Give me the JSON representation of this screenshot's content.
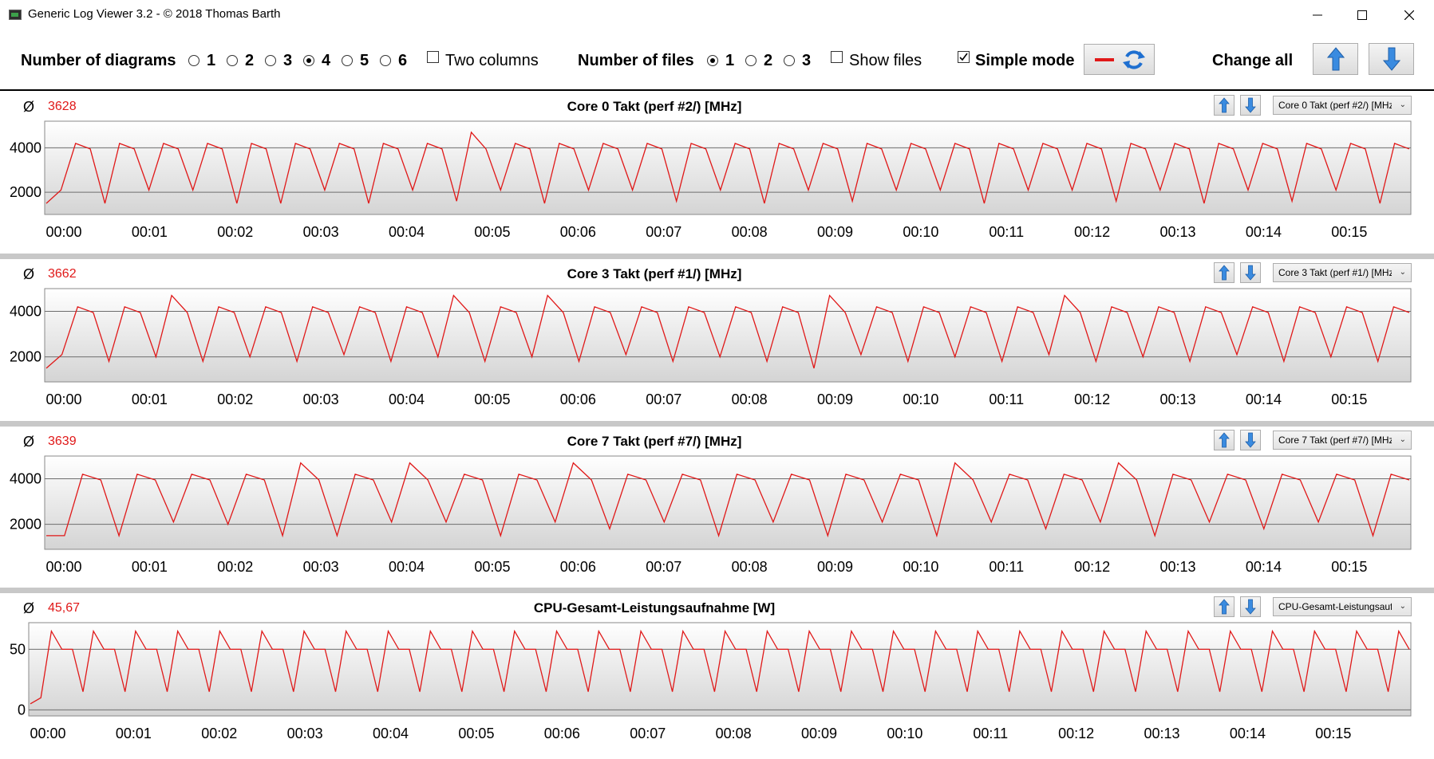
{
  "window": {
    "title": "Generic Log Viewer 3.2 - © 2018 Thomas Barth",
    "controls": [
      "minimize",
      "maximize",
      "close"
    ]
  },
  "toolbar": {
    "diagrams_label": "Number of diagrams",
    "diagram_options": [
      "1",
      "2",
      "3",
      "4",
      "5",
      "6"
    ],
    "diagrams_selected": "4",
    "two_columns_label": "Two columns",
    "two_columns_checked": false,
    "files_label": "Number of files",
    "file_options": [
      "1",
      "2",
      "3"
    ],
    "files_selected": "1",
    "show_files_label": "Show files",
    "show_files_checked": false,
    "simple_mode_label": "Simple mode",
    "simple_mode_checked": true,
    "change_all_label": "Change all",
    "line_color": "#e01818"
  },
  "panels": [
    {
      "avg_symbol": "Ø",
      "avg_value": "3628",
      "title": "Core 0 Takt (perf #2/) [MHz]",
      "selector": "Core 0 Takt (perf #2/) [MHz]"
    },
    {
      "avg_symbol": "Ø",
      "avg_value": "3662",
      "title": "Core 3 Takt (perf #1/) [MHz]",
      "selector": "Core 3 Takt (perf #1/) [MHz]"
    },
    {
      "avg_symbol": "Ø",
      "avg_value": "3639",
      "title": "Core 7 Takt (perf #7/) [MHz]",
      "selector": "Core 7 Takt (perf #7/) [MHz]"
    },
    {
      "avg_symbol": "Ø",
      "avg_value": "45,67",
      "title": "CPU-Gesamt-Leistungsaufnahme [W]",
      "selector": "CPU-Gesamt-Leistungsaufnahme [W]"
    }
  ],
  "chart_data": [
    {
      "type": "line",
      "title": "Core 0 Takt (perf #2/) [MHz]",
      "x_ticks": [
        "00:00",
        "00:01",
        "00:02",
        "00:03",
        "00:04",
        "00:05",
        "00:06",
        "00:07",
        "00:08",
        "00:09",
        "00:10",
        "00:11",
        "00:12",
        "00:13",
        "00:14",
        "00:15"
      ],
      "y_ticks": [
        2000,
        4000
      ],
      "ylim": [
        1000,
        5200
      ],
      "xlim_minutes": [
        0,
        15.7
      ],
      "grid": true,
      "series": [
        {
          "values": [
            1500,
            2100,
            4200,
            3950,
            1500,
            4200,
            3950,
            2100,
            4200,
            3950,
            2100,
            4200,
            3950,
            1500,
            4200,
            3950,
            1500,
            4200,
            3950,
            2100,
            4200,
            3950,
            1500,
            4200,
            3950,
            2100,
            4200,
            3950,
            1600,
            4700,
            3950,
            2100,
            4200,
            3950,
            1500,
            4200,
            3950,
            2100,
            4200,
            3950,
            2100,
            4200,
            3950,
            1600,
            4200,
            3950,
            2100,
            4200,
            3950,
            1500,
            4200,
            3950,
            2100,
            4200,
            3950,
            1600,
            4200,
            3950,
            2100,
            4200,
            3950,
            2100,
            4200,
            3950,
            1500,
            4200,
            3950,
            2100,
            4200,
            3950,
            2100,
            4200,
            3950,
            1600,
            4200,
            3950,
            2100,
            4200,
            3950,
            1500,
            4200,
            3950,
            2100,
            4200,
            3950,
            1600,
            4200,
            3950,
            2100,
            4200,
            3950,
            1500,
            4200,
            3950
          ]
        }
      ]
    },
    {
      "type": "line",
      "title": "Core 3 Takt (perf #1/) [MHz]",
      "x_ticks": [
        "00:00",
        "00:01",
        "00:02",
        "00:03",
        "00:04",
        "00:05",
        "00:06",
        "00:07",
        "00:08",
        "00:09",
        "00:10",
        "00:11",
        "00:12",
        "00:13",
        "00:14",
        "00:15"
      ],
      "y_ticks": [
        2000,
        4000
      ],
      "ylim": [
        900,
        5000
      ],
      "xlim_minutes": [
        0,
        15.7
      ],
      "grid": true,
      "series": [
        {
          "values": [
            1500,
            2100,
            4200,
            3950,
            1800,
            4200,
            3950,
            2000,
            4700,
            3950,
            1800,
            4200,
            3950,
            2000,
            4200,
            3950,
            1800,
            4200,
            3950,
            2100,
            4200,
            3950,
            1800,
            4200,
            3950,
            2000,
            4700,
            3950,
            1800,
            4200,
            3950,
            2000,
            4700,
            3950,
            1800,
            4200,
            3950,
            2100,
            4200,
            3950,
            1800,
            4200,
            3950,
            2000,
            4200,
            3950,
            1800,
            4200,
            3950,
            1500,
            4700,
            3950,
            2100,
            4200,
            3950,
            1800,
            4200,
            3950,
            2000,
            4200,
            3950,
            1800,
            4200,
            3950,
            2100,
            4700,
            3950,
            1800,
            4200,
            3950,
            2000,
            4200,
            3950,
            1800,
            4200,
            3950,
            2100,
            4200,
            3950,
            1800,
            4200,
            3950,
            2000,
            4200,
            3950,
            1800,
            4200,
            3950
          ]
        }
      ]
    },
    {
      "type": "line",
      "title": "Core 7 Takt (perf #7/) [MHz]",
      "x_ticks": [
        "00:00",
        "00:01",
        "00:02",
        "00:03",
        "00:04",
        "00:05",
        "00:06",
        "00:07",
        "00:08",
        "00:09",
        "00:10",
        "00:11",
        "00:12",
        "00:13",
        "00:14",
        "00:15"
      ],
      "y_ticks": [
        2000,
        4000
      ],
      "ylim": [
        900,
        5000
      ],
      "xlim_minutes": [
        0,
        15.7
      ],
      "grid": true,
      "series": [
        {
          "values": [
            1500,
            1500,
            4200,
            3950,
            1500,
            4200,
            3950,
            2100,
            4200,
            3950,
            2000,
            4200,
            3950,
            1500,
            4700,
            3950,
            1500,
            4200,
            3950,
            2100,
            4700,
            3950,
            2100,
            4200,
            3950,
            1500,
            4200,
            3950,
            2100,
            4700,
            3950,
            1800,
            4200,
            3950,
            2100,
            4200,
            3950,
            1500,
            4200,
            3950,
            2100,
            4200,
            3950,
            1500,
            4200,
            3950,
            2100,
            4200,
            3950,
            1500,
            4700,
            3950,
            2100,
            4200,
            3950,
            1800,
            4200,
            3950,
            2100,
            4700,
            3950,
            1500,
            4200,
            3950,
            2100,
            4200,
            3950,
            1800,
            4200,
            3950,
            2100,
            4200,
            3950,
            1500,
            4200,
            3950
          ]
        }
      ]
    },
    {
      "type": "line",
      "title": "CPU-Gesamt-Leistungsaufnahme [W]",
      "x_ticks": [
        "00:00",
        "00:01",
        "00:02",
        "00:03",
        "00:04",
        "00:05",
        "00:06",
        "00:07",
        "00:08",
        "00:09",
        "00:10",
        "00:11",
        "00:12",
        "00:13",
        "00:14",
        "00:15"
      ],
      "y_ticks": [
        0,
        50
      ],
      "ylim": [
        -5,
        72
      ],
      "xlim_minutes": [
        0,
        15.7
      ],
      "grid": true,
      "series": [
        {
          "values": [
            5,
            10,
            65,
            50,
            50,
            15,
            65,
            50,
            50,
            15,
            65,
            50,
            50,
            15,
            65,
            50,
            50,
            15,
            65,
            50,
            50,
            15,
            65,
            50,
            50,
            15,
            65,
            50,
            50,
            15,
            65,
            50,
            50,
            15,
            65,
            50,
            50,
            15,
            65,
            50,
            50,
            15,
            65,
            50,
            50,
            15,
            65,
            50,
            50,
            15,
            65,
            50,
            50,
            15,
            65,
            50,
            50,
            15,
            65,
            50,
            50,
            15,
            65,
            50,
            50,
            15,
            65,
            50,
            50,
            15,
            65,
            50,
            50,
            15,
            65,
            50,
            50,
            15,
            65,
            50,
            50,
            15,
            65,
            50,
            50,
            15,
            65,
            50,
            50,
            15,
            65,
            50,
            50,
            15,
            65,
            50,
            50,
            15,
            65,
            50,
            50,
            15,
            65,
            50,
            50,
            15,
            65,
            50,
            50,
            15,
            65,
            50,
            50,
            15,
            65,
            50,
            50,
            15,
            65,
            50,
            50,
            15,
            65,
            50,
            50,
            15,
            65,
            50,
            50,
            15,
            65,
            50
          ]
        }
      ]
    }
  ]
}
